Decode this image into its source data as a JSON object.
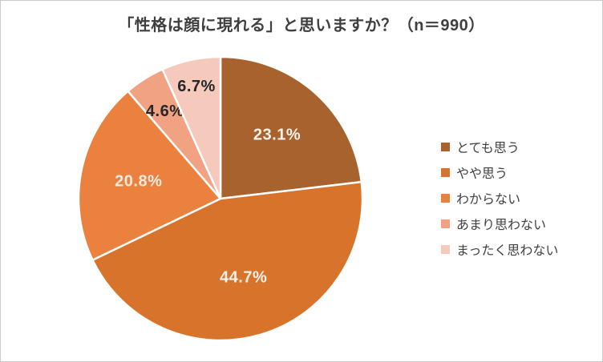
{
  "chart_data": {
    "type": "pie",
    "title": "「性格は顔に現れる」と思いますか？（n＝990）",
    "categories": [
      "とても思う",
      "やや思う",
      "わからない",
      "あまり思わない",
      "まったく思わない"
    ],
    "values": [
      23.1,
      44.7,
      20.8,
      4.6,
      6.7
    ],
    "unit": "%",
    "colors": [
      "#A8622D",
      "#D8732C",
      "#EB813E",
      "#F0A283",
      "#F5C9BC"
    ],
    "label_colors": [
      "#FAF2EA",
      "#FAF2EA",
      "#F3EADF",
      "#262626",
      "#262626"
    ],
    "slice_stroke_color": "#FFFFFF",
    "legend_position": "right",
    "start_angle_deg": 0,
    "direction": "clockwise",
    "label_radius_factors": [
      0.6,
      0.58,
      0.59,
      0.73,
      0.81
    ]
  },
  "page": {
    "background": "#FFFFFF",
    "border_color": "#CBCBCB",
    "title_color": "#3F3F3F",
    "legend_text_color": "#404040"
  }
}
